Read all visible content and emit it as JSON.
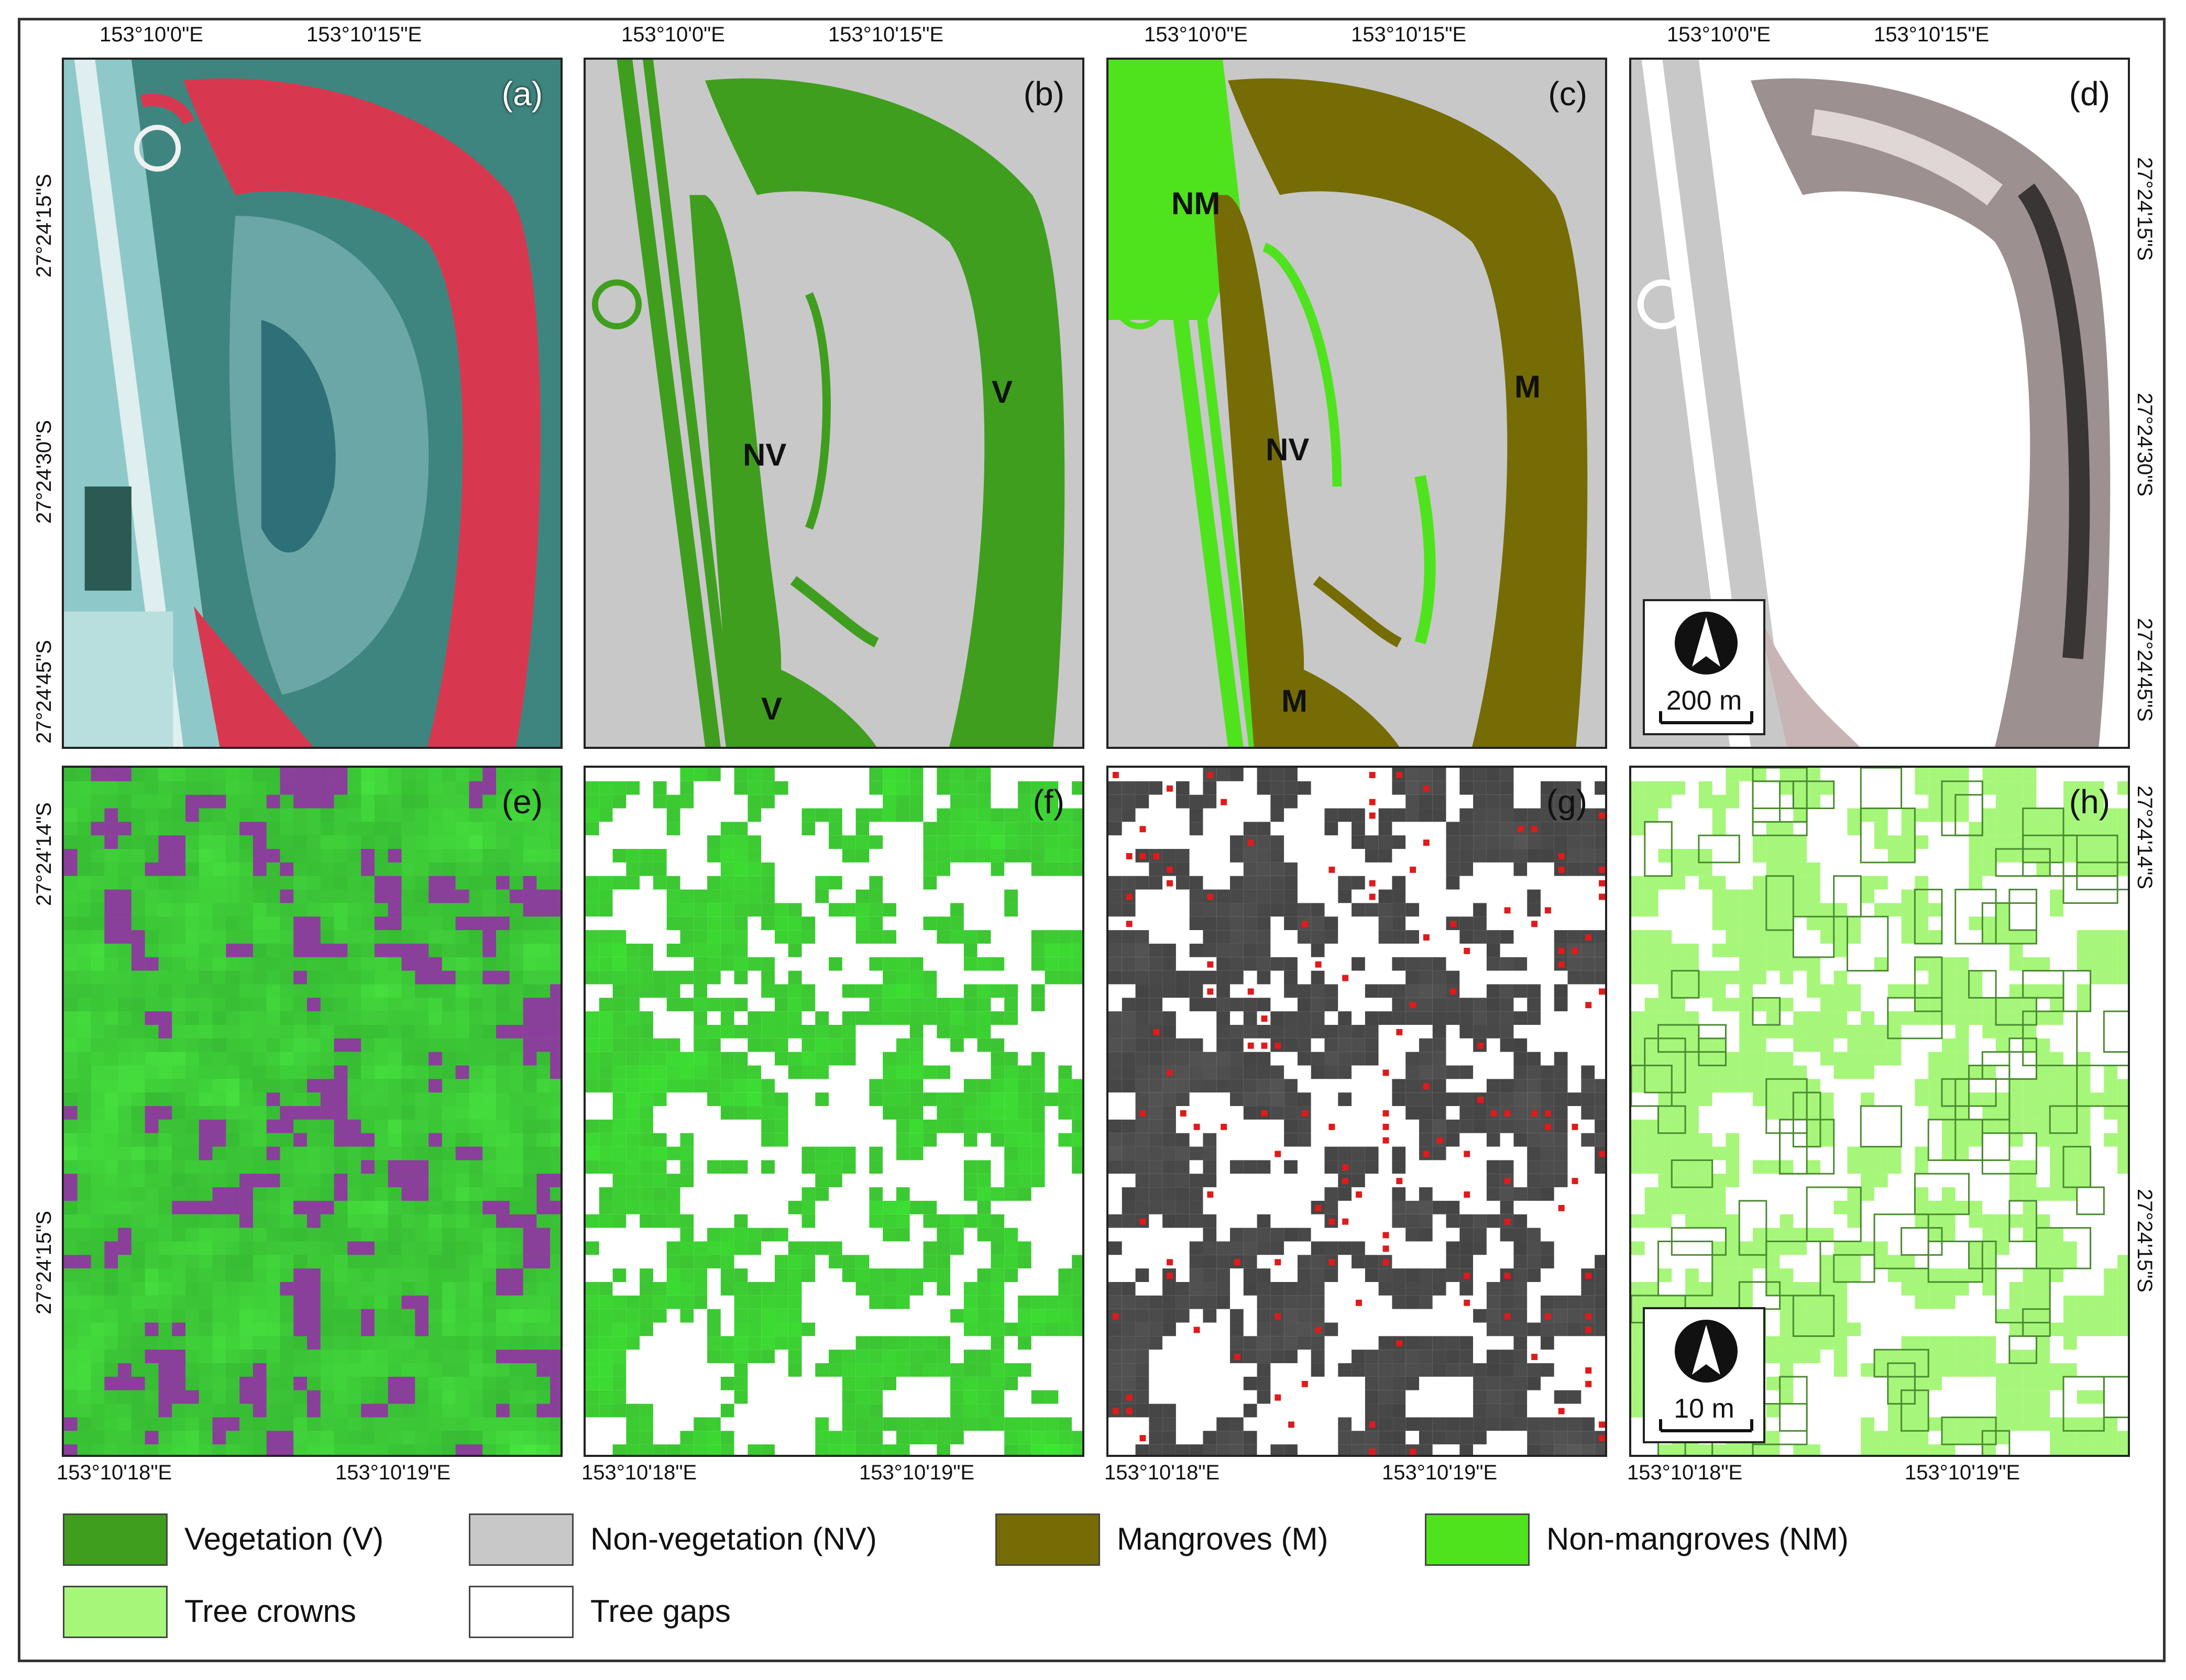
{
  "panels": [
    {
      "id": "a",
      "label": "(a)"
    },
    {
      "id": "b",
      "label": "(b)"
    },
    {
      "id": "c",
      "label": "(c)"
    },
    {
      "id": "d",
      "label": "(d)"
    },
    {
      "id": "e",
      "label": "(e)"
    },
    {
      "id": "f",
      "label": "(f)"
    },
    {
      "id": "g",
      "label": "(g)"
    },
    {
      "id": "h",
      "label": "(h)"
    }
  ],
  "top_lon_ticks": [
    "153°10'0\"E",
    "153°10'15\"E"
  ],
  "top_lat_ticks": [
    "27°24'15\"S",
    "27°24'30\"S",
    "27°24'45\"S"
  ],
  "bottom_lon_ticks": [
    "153°10'18\"E",
    "153°10'19\"E"
  ],
  "bottom_lat_ticks": [
    "27°24'14\"S",
    "27°24'15\"S"
  ],
  "class_labels": {
    "b": [
      "NV",
      "V",
      "V"
    ],
    "c": [
      "NM",
      "NV",
      "M",
      "M"
    ]
  },
  "scale_bars": {
    "top": "200 m",
    "bottom": "10 m"
  },
  "legend": [
    {
      "label": "Vegetation (V)",
      "color": "#3f9e1e"
    },
    {
      "label": "Non-vegetation (NV)",
      "color": "#c8c8c8"
    },
    {
      "label": "Mangroves (M)",
      "color": "#766c05"
    },
    {
      "label": "Non-mangroves (NM)",
      "color": "#4fe31d"
    },
    {
      "label": "Tree crowns",
      "color": "#a6f67a"
    },
    {
      "label": "Tree gaps",
      "color": "#ffffff"
    }
  ],
  "icons": {
    "north_arrow": "north-arrow-icon"
  }
}
